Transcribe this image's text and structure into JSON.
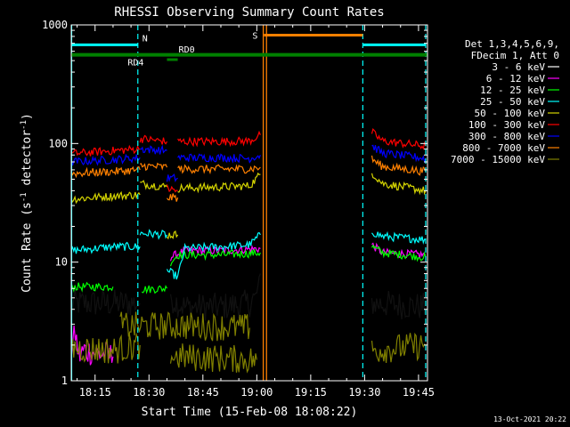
{
  "chart_data": {
    "type": "line",
    "title": "RHESSI Observing Summary Count Rates",
    "xlabel": "Start Time (15-Feb-08 18:08:22)",
    "ylabel_parts": [
      "Count Rate (s",
      "-1",
      " detector",
      "-1",
      ")"
    ],
    "x_unit": "minutes after 18:00 UT",
    "xlim": [
      8.37,
      107.5
    ],
    "ylim": [
      1,
      1000
    ],
    "yscale": "log",
    "x_ticks": [
      {
        "value": 15,
        "label": "18:15"
      },
      {
        "value": 30,
        "label": "18:30"
      },
      {
        "value": 45,
        "label": "18:45"
      },
      {
        "value": 60,
        "label": "19:00"
      },
      {
        "value": 75,
        "label": "19:15"
      },
      {
        "value": 90,
        "label": "19:30"
      },
      {
        "value": 105,
        "label": "19:45"
      }
    ],
    "y_ticks": [
      {
        "value": 1,
        "label": "1"
      },
      {
        "value": 10,
        "label": "10"
      },
      {
        "value": 100,
        "label": "100"
      },
      {
        "value": 1000,
        "label": "1000"
      }
    ],
    "legend": {
      "placement": "right",
      "header": [
        "Det 1,3,4,5,6,9,",
        "FDecim 1, Att 0"
      ],
      "entries": [
        {
          "label": "3 - 6 keV",
          "color": "#ffffff"
        },
        {
          "label": "6 - 12 keV",
          "color": "#ff00ff"
        },
        {
          "label": "12 - 25 keV",
          "color": "#00ff00"
        },
        {
          "label": "25 - 50 keV",
          "color": "#00ffff"
        },
        {
          "label": "50 - 100 keV",
          "color": "#d4d400"
        },
        {
          "label": "100 - 300 keV",
          "color": "#ff0000"
        },
        {
          "label": "300 - 800 keV",
          "color": "#0000ff"
        },
        {
          "label": "800 - 7000 keV",
          "color": "#ff8000"
        },
        {
          "label": "7000 - 15000 keV",
          "color": "#808000"
        }
      ]
    },
    "series": [
      {
        "name": "3 - 6 keV",
        "color": "#000000",
        "segments": [
          [
            [
              8.4,
              4.5
            ],
            [
              27.5,
              4.5
            ]
          ],
          [
            [
              36,
              5.0
            ],
            [
              38,
              4.5
            ],
            [
              40,
              4.2
            ],
            [
              50,
              4.2
            ],
            [
              58,
              4.5
            ],
            [
              60,
              5.5
            ],
            [
              61,
              8
            ]
          ],
          [
            [
              92,
              4.5
            ],
            [
              107,
              4.2
            ]
          ]
        ]
      },
      {
        "name": "6 - 12 keV",
        "color": "#ff00ff",
        "segments": [
          [
            [
              8.4,
              1.8
            ],
            [
              9.5,
              2.5
            ],
            [
              10.5,
              1.6
            ],
            [
              12,
              1.8
            ],
            [
              16,
              1.7
            ],
            [
              20,
              1.6
            ]
          ],
          [
            [
              36,
              11
            ],
            [
              40,
              12.5
            ],
            [
              50,
              12.5
            ],
            [
              61,
              13
            ]
          ],
          [
            [
              92,
              14
            ],
            [
              95,
              12
            ],
            [
              107,
              11.5
            ]
          ]
        ]
      },
      {
        "name": "12 - 25 keV",
        "color": "#00ff00",
        "segments": [
          [
            [
              8.4,
              6.2
            ],
            [
              18,
              6.2
            ],
            [
              20,
              6.2
            ]
          ],
          [
            [
              28,
              5.9
            ],
            [
              35,
              6.0
            ]
          ],
          [
            [
              36,
              10
            ],
            [
              38,
              11.5
            ],
            [
              50,
              11.5
            ],
            [
              61,
              12
            ]
          ],
          [
            [
              92,
              13.5
            ],
            [
              95,
              12
            ],
            [
              107,
              11
            ]
          ]
        ]
      },
      {
        "name": "25 - 50 keV",
        "color": "#00ffff",
        "segments": [
          [
            [
              8.4,
              12.5
            ],
            [
              20,
              13.5
            ],
            [
              27.5,
              13.5
            ]
          ],
          [
            [
              27.5,
              17.5
            ],
            [
              35,
              17
            ]
          ],
          [
            [
              35,
              8.5
            ],
            [
              38,
              7.5
            ],
            [
              40,
              13
            ],
            [
              50,
              13.5
            ],
            [
              58,
              14
            ],
            [
              61,
              17
            ]
          ],
          [
            [
              92,
              18
            ],
            [
              95,
              16.5
            ],
            [
              107,
              15.5
            ]
          ]
        ]
      },
      {
        "name": "50 - 100 keV",
        "color": "#d4d400",
        "segments": [
          [
            [
              8.4,
              34
            ],
            [
              20,
              36
            ],
            [
              27.5,
              37
            ]
          ],
          [
            [
              27.5,
              46
            ],
            [
              35,
              43
            ]
          ],
          [
            [
              35,
              17
            ],
            [
              38,
              17
            ]
          ],
          [
            [
              38,
              42
            ],
            [
              50,
              43
            ],
            [
              58,
              44
            ],
            [
              61,
              55
            ]
          ],
          [
            [
              92,
              57
            ],
            [
              95,
              46
            ],
            [
              107,
              40
            ]
          ]
        ]
      },
      {
        "name": "100 - 300 keV",
        "color": "#ff0000",
        "segments": [
          [
            [
              8.4,
              82
            ],
            [
              20,
              87
            ],
            [
              27.5,
              90
            ]
          ],
          [
            [
              27.5,
              110
            ],
            [
              35,
              104
            ]
          ],
          [
            [
              35,
              42
            ],
            [
              38,
              40
            ]
          ],
          [
            [
              38,
              104
            ],
            [
              50,
              104
            ],
            [
              58,
              105
            ],
            [
              61,
              118
            ]
          ],
          [
            [
              92,
              125
            ],
            [
              95,
              105
            ],
            [
              107,
              95
            ]
          ]
        ]
      },
      {
        "name": "300 - 800 keV",
        "color": "#0000ff",
        "segments": [
          [
            [
              8.4,
              70
            ],
            [
              20,
              73
            ],
            [
              27.5,
              76
            ]
          ],
          [
            [
              27.5,
              90
            ],
            [
              35,
              87
            ]
          ],
          [
            [
              35,
              51
            ],
            [
              38,
              51
            ]
          ],
          [
            [
              38,
              76
            ],
            [
              50,
              76
            ],
            [
              58,
              75
            ],
            [
              61,
              80
            ]
          ],
          [
            [
              92,
              96
            ],
            [
              95,
              83
            ],
            [
              107,
              75
            ]
          ]
        ]
      },
      {
        "name": "800 - 7000 keV",
        "color": "#ff8000",
        "segments": [
          [
            [
              8.4,
              56
            ],
            [
              20,
              58
            ],
            [
              27.5,
              60
            ]
          ],
          [
            [
              27.5,
              65
            ],
            [
              35,
              63
            ]
          ],
          [
            [
              35,
              35
            ],
            [
              38,
              35
            ]
          ],
          [
            [
              38,
              61
            ],
            [
              50,
              61
            ],
            [
              58,
              61
            ],
            [
              61,
              63
            ]
          ],
          [
            [
              92,
              74
            ],
            [
              95,
              64
            ],
            [
              107,
              58
            ]
          ]
        ]
      },
      {
        "name": "7000 - 15000 keV",
        "color": "#808000",
        "segments": [
          [
            [
              8.4,
              1.9
            ],
            [
              20,
              1.8
            ],
            [
              27.5,
              2.0
            ]
          ],
          [
            [
              22,
              2.9
            ],
            [
              40,
              2.9
            ],
            [
              58,
              2.8
            ]
          ],
          [
            [
              36,
              1.6
            ],
            [
              60,
              1.5
            ]
          ],
          [
            [
              92,
              1.8
            ],
            [
              107,
              2.0
            ]
          ]
        ]
      }
    ],
    "markers": {
      "saa_bars": [
        {
          "x": [
            8.4,
            26.9
          ],
          "y": 680,
          "color": "#00ffff",
          "label": "N"
        },
        {
          "x": [
            89.5,
            107
          ],
          "y": 680,
          "color": "#00ffff",
          "label": ""
        }
      ],
      "night_bar": {
        "x": [
          8.4,
          107.5
        ],
        "y": 560,
        "color": "#008000"
      },
      "small_bars": [
        {
          "x": [
            31,
            34
          ],
          "y": 560,
          "color": "#008000",
          "label": "RD4"
        },
        {
          "x": [
            35,
            38
          ],
          "y": 510,
          "color": "#008000",
          "label": "RD0"
        }
      ],
      "s_bar": {
        "x": [
          62,
          89.5
        ],
        "y": 820,
        "color": "#ff8000",
        "label": "S"
      },
      "orange_vlines": [
        61.8,
        62.7
      ],
      "cyan_dashed_vlines": [
        26.9,
        89.5,
        107
      ],
      "left_cyan_line_x": 8.45
    },
    "footer_date": "13-Oct-2021 20:22"
  }
}
